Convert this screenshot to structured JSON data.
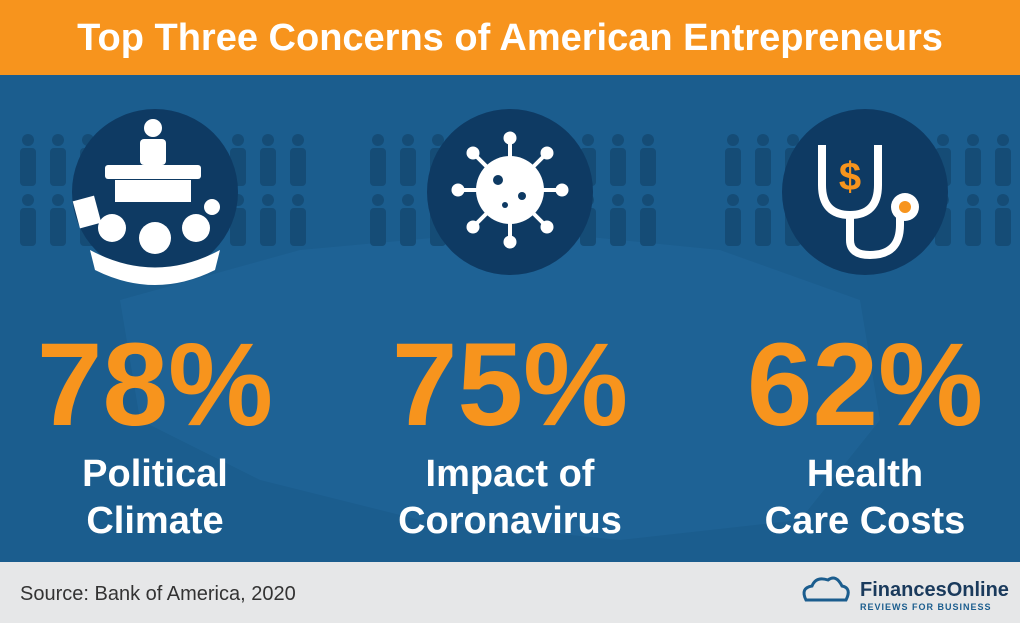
{
  "header": {
    "title": "Top Three Concerns of American Entrepreneurs"
  },
  "stats": [
    {
      "value_label": "78%",
      "label_lines": [
        "Political",
        "Climate"
      ]
    },
    {
      "value_label": "75%",
      "label_lines": [
        "Impact of",
        "Coronavirus"
      ]
    },
    {
      "value_label": "62%",
      "label_lines": [
        "Health",
        "Care Costs"
      ]
    }
  ],
  "footer": {
    "source": "Source: Bank of America, 2020",
    "brand": "FinancesOnline",
    "tagline": "REVIEWS FOR BUSINESS"
  }
}
